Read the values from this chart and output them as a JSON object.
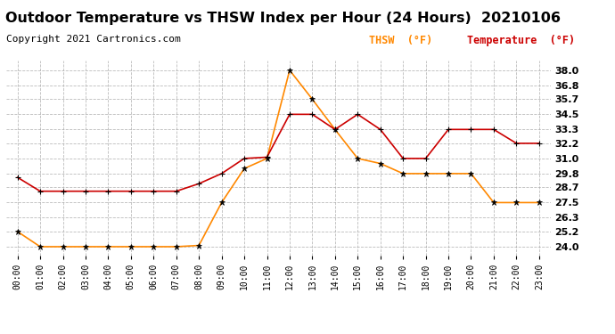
{
  "title": "Outdoor Temperature vs THSW Index per Hour (24 Hours)  20210106",
  "copyright": "Copyright 2021 Cartronics.com",
  "legend_thsw": "THSW  (°F)",
  "legend_temp": "Temperature  (°F)",
  "hours": [
    "00:00",
    "01:00",
    "02:00",
    "03:00",
    "04:00",
    "05:00",
    "06:00",
    "07:00",
    "08:00",
    "09:00",
    "10:00",
    "11:00",
    "12:00",
    "13:00",
    "14:00",
    "15:00",
    "16:00",
    "17:00",
    "18:00",
    "19:00",
    "20:00",
    "21:00",
    "22:00",
    "23:00"
  ],
  "temperature": [
    29.5,
    28.4,
    28.4,
    28.4,
    28.4,
    28.4,
    28.4,
    28.4,
    29.0,
    29.8,
    31.0,
    31.1,
    34.5,
    34.5,
    33.3,
    34.5,
    33.3,
    31.0,
    31.0,
    33.3,
    33.3,
    33.3,
    32.2,
    32.2
  ],
  "thsw": [
    25.2,
    24.0,
    24.0,
    24.0,
    24.0,
    24.0,
    24.0,
    24.0,
    24.1,
    27.5,
    30.2,
    31.0,
    38.0,
    35.7,
    33.3,
    31.0,
    30.6,
    29.8,
    29.8,
    29.8,
    29.8,
    27.5,
    27.5,
    27.5
  ],
  "ylim_min": 23.3,
  "ylim_max": 38.8,
  "yticks": [
    24.0,
    25.2,
    26.3,
    27.5,
    28.7,
    29.8,
    31.0,
    32.2,
    33.3,
    34.5,
    35.7,
    36.8,
    38.0
  ],
  "temp_color": "#cc0000",
  "thsw_color": "#ff8800",
  "marker_color": "#000000",
  "title_fontsize": 11.5,
  "copyright_fontsize": 8,
  "background_color": "#ffffff",
  "grid_color": "#aaaaaa"
}
